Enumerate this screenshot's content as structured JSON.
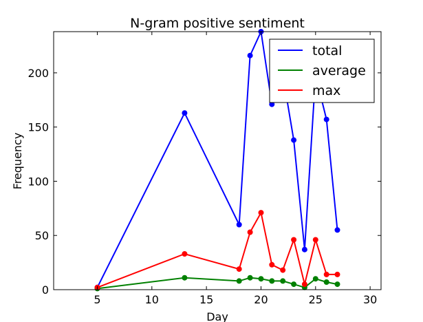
{
  "chart_data": {
    "type": "line",
    "title": "N-gram positive sentiment",
    "xlabel": "Day",
    "ylabel": "Frequency",
    "xlim": [
      1,
      31
    ],
    "ylim": [
      0,
      238
    ],
    "xticks": [
      5,
      10,
      15,
      20,
      25,
      30
    ],
    "yticks": [
      0,
      50,
      100,
      150,
      200
    ],
    "grid": false,
    "legend_position": "top-right",
    "x": [
      5,
      13,
      18,
      19,
      20,
      21,
      22,
      23,
      24,
      25,
      26,
      27
    ],
    "series": [
      {
        "name": "total",
        "color": "#0000ff",
        "values": [
          2,
          163,
          60,
          216,
          238,
          171,
          198,
          138,
          37,
          198,
          157,
          55
        ]
      },
      {
        "name": "average",
        "color": "#008000",
        "values": [
          1,
          11,
          8,
          11,
          10,
          8,
          8,
          5,
          2,
          10,
          7,
          5
        ]
      },
      {
        "name": "max",
        "color": "#ff0000",
        "values": [
          2,
          33,
          19,
          53,
          71,
          23,
          18,
          46,
          5,
          46,
          14,
          14
        ]
      }
    ]
  }
}
